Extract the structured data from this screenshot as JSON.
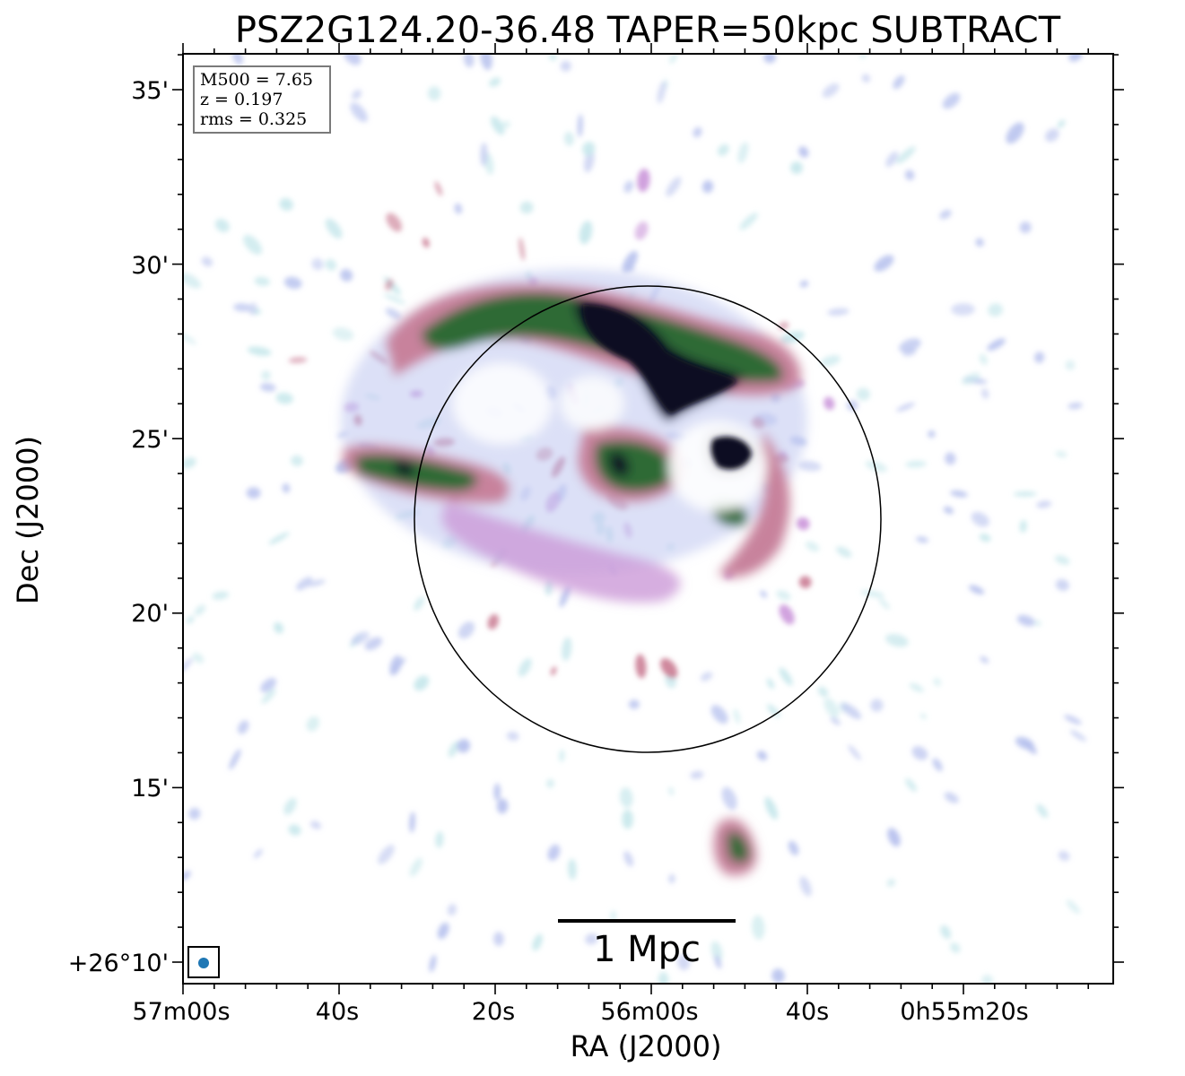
{
  "figure": {
    "title": "PSZ2G124.20-36.48 TAPER=50kpc SUBTRACT",
    "xlabel": "RA (J2000)",
    "ylabel": "Dec (J2000)"
  },
  "info_box": {
    "mass": "M500 = 7.65",
    "redshift": "z = 0.197",
    "rms": "rms = 0.325"
  },
  "x_ticks": [
    "57m00s",
    "40s",
    "20s",
    "56m00s",
    "40s",
    "0h55m20s"
  ],
  "y_ticks": [
    "35'",
    "30'",
    "25'",
    "20'",
    "15'",
    "+26°10'"
  ],
  "scale_bar": {
    "label": "1 Mpc"
  },
  "colors": {
    "colormap": [
      "#ffffff",
      "#c8e8ec",
      "#b8c2ee",
      "#c890d8",
      "#c87890",
      "#8c7860",
      "#286a30",
      "#101028"
    ],
    "circle": "#000000",
    "beam": "#1f77b4"
  }
}
